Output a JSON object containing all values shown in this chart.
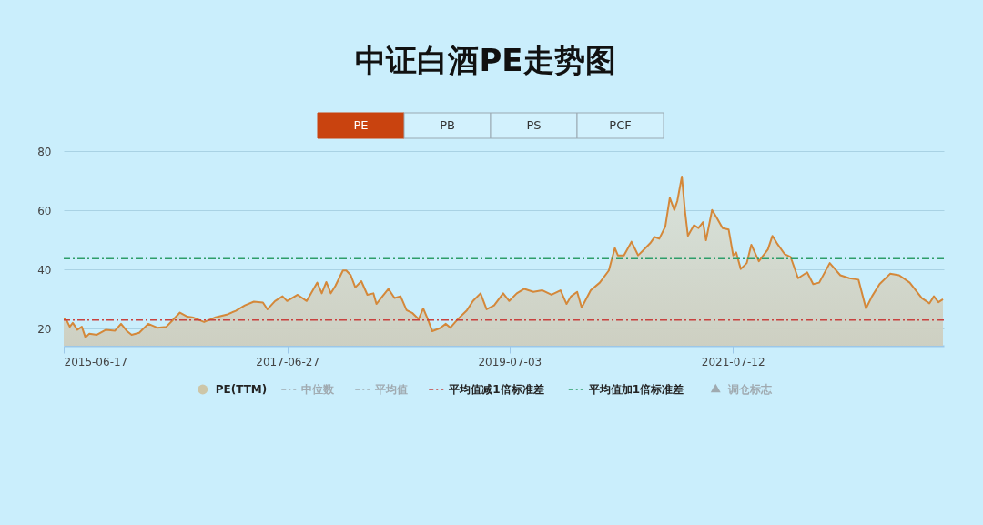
{
  "chart_data": {
    "type": "area",
    "title": "中证白酒PE走势图",
    "x": [
      "2015-06-17",
      "2015-06-27",
      "2015-07-07",
      "2015-07-17",
      "2015-08-01",
      "2015-08-16",
      "2015-08-28",
      "2015-09-10",
      "2015-10-05",
      "2015-11-04",
      "2015-12-04",
      "2015-12-24",
      "2016-01-13",
      "2016-01-28",
      "2016-02-22",
      "2016-03-23",
      "2016-04-22",
      "2016-05-22",
      "2016-06-11",
      "2016-07-06",
      "2016-07-31",
      "2016-08-20",
      "2016-09-24",
      "2016-10-29",
      "2016-12-08",
      "2017-01-07",
      "2017-02-06",
      "2017-03-08",
      "2017-04-07",
      "2017-04-22",
      "2017-05-17",
      "2017-06-11",
      "2017-06-26",
      "2017-07-31",
      "2017-08-30",
      "2017-10-04",
      "2017-10-19",
      "2017-11-03",
      "2017-11-18",
      "2017-12-03",
      "2017-12-28",
      "2018-01-08",
      "2018-01-23",
      "2018-02-07",
      "2018-02-27",
      "2018-03-19",
      "2018-04-08",
      "2018-04-18",
      "2018-05-08",
      "2018-05-28",
      "2018-06-17",
      "2018-07-07",
      "2018-07-27",
      "2018-08-16",
      "2018-09-05",
      "2018-09-20",
      "2018-10-05",
      "2018-10-20",
      "2018-11-14",
      "2018-12-04",
      "2018-12-19",
      "2019-01-13",
      "2019-02-12",
      "2019-03-04",
      "2019-03-29",
      "2019-04-18",
      "2019-05-13",
      "2019-06-12",
      "2019-07-02",
      "2019-07-27",
      "2019-08-21",
      "2019-09-20",
      "2019-10-20",
      "2019-11-19",
      "2019-12-19",
      "2020-01-08",
      "2020-01-23",
      "2020-02-12",
      "2020-02-27",
      "2020-03-28",
      "2020-04-27",
      "2020-05-27",
      "2020-06-16",
      "2020-06-26",
      "2020-07-16",
      "2020-08-10",
      "2020-08-25",
      "2020-09-01",
      "2020-09-16",
      "2020-10-11",
      "2020-10-26",
      "2020-11-10",
      "2020-11-30",
      "2020-12-15",
      "2020-12-30",
      "2021-01-09",
      "2021-01-24",
      "2021-02-03",
      "2021-02-13",
      "2021-03-05",
      "2021-03-20",
      "2021-04-04",
      "2021-04-14",
      "2021-05-04",
      "2021-05-19",
      "2021-06-08",
      "2021-06-28",
      "2021-07-13",
      "2021-07-23",
      "2021-08-07",
      "2021-08-27",
      "2021-09-11",
      "2021-10-06",
      "2021-11-05",
      "2021-11-20",
      "2021-12-05",
      "2021-12-30",
      "2022-01-19",
      "2022-02-13",
      "2022-03-15",
      "2022-04-04",
      "2022-04-24",
      "2022-05-29",
      "2022-07-03",
      "2022-08-02",
      "2022-09-01",
      "2022-09-26",
      "2022-10-16",
      "2022-11-10",
      "2022-12-15",
      "2023-01-14",
      "2023-02-18",
      "2023-03-30",
      "2023-04-24",
      "2023-05-09",
      "2023-05-24",
      "2023-06-08"
    ],
    "series": [
      {
        "name": "PE(TTM)",
        "color": "#d4883a",
        "values": [
          23.5,
          22.8,
          20.7,
          22,
          19.7,
          20.7,
          17.1,
          18.4,
          18,
          19.7,
          19.4,
          21.7,
          19.2,
          18,
          18.7,
          21.7,
          20.4,
          20.7,
          22.8,
          25.5,
          24.1,
          23.8,
          22.3,
          23.8,
          24.8,
          26.1,
          27.9,
          29.2,
          28.9,
          26.6,
          29.4,
          31,
          29.4,
          31.5,
          29.4,
          35.6,
          32,
          35.8,
          32,
          34.5,
          39.7,
          39.7,
          38.1,
          34,
          36.1,
          31.5,
          32,
          28.4,
          31,
          33.5,
          30.4,
          31,
          26.3,
          25.3,
          23.3,
          26.9,
          23.3,
          19.2,
          20.2,
          21.7,
          20.4,
          23.3,
          26.3,
          29.4,
          32,
          26.6,
          27.9,
          32,
          29.4,
          32,
          33.5,
          32.5,
          33,
          31.5,
          33,
          28.4,
          31,
          32.5,
          27.2,
          33,
          35.6,
          39.7,
          47.3,
          44.8,
          44.8,
          49.4,
          46.3,
          44.8,
          46.3,
          48.9,
          51,
          50.4,
          54.5,
          64.2,
          60.1,
          63.2,
          71.4,
          60.1,
          51.4,
          55,
          54,
          56,
          49.9,
          60.1,
          57.6,
          54,
          53.5,
          44.8,
          45.8,
          40.2,
          42.2,
          48.4,
          42.8,
          46.8,
          51.4,
          48.9,
          45.3,
          44.3,
          37.1,
          39.1,
          35.1,
          35.6,
          42.2,
          38.1,
          37.1,
          36.6,
          26.9,
          31,
          35.1,
          38.6,
          38.1,
          35.6,
          30.4,
          28.6,
          31,
          29,
          30
        ]
      }
    ],
    "xlim": [
      "2015-06-17",
      "2023-06-11"
    ],
    "xticks": [
      "2015-06-17",
      "2017-06-27",
      "2019-07-03",
      "2021-07-12"
    ],
    "ylim": [
      14.3,
      80
    ],
    "yticks": [
      20,
      40,
      60,
      80
    ],
    "grid": "y",
    "legend": "bottom",
    "ref_lines": [
      {
        "axis": "y",
        "value": 23,
        "label": "平均值减1倍标准差",
        "color": "#c8413e",
        "line_style": "dashed"
      },
      {
        "axis": "y",
        "value": 43.7,
        "label": "平均值加1倍标准差",
        "color": "#2e9e6a",
        "line_style": "dashed"
      }
    ],
    "annotations": [
      "PE",
      "PB",
      "PS",
      "PCF",
      "中位数",
      "平均值",
      "调仓标志"
    ]
  }
}
